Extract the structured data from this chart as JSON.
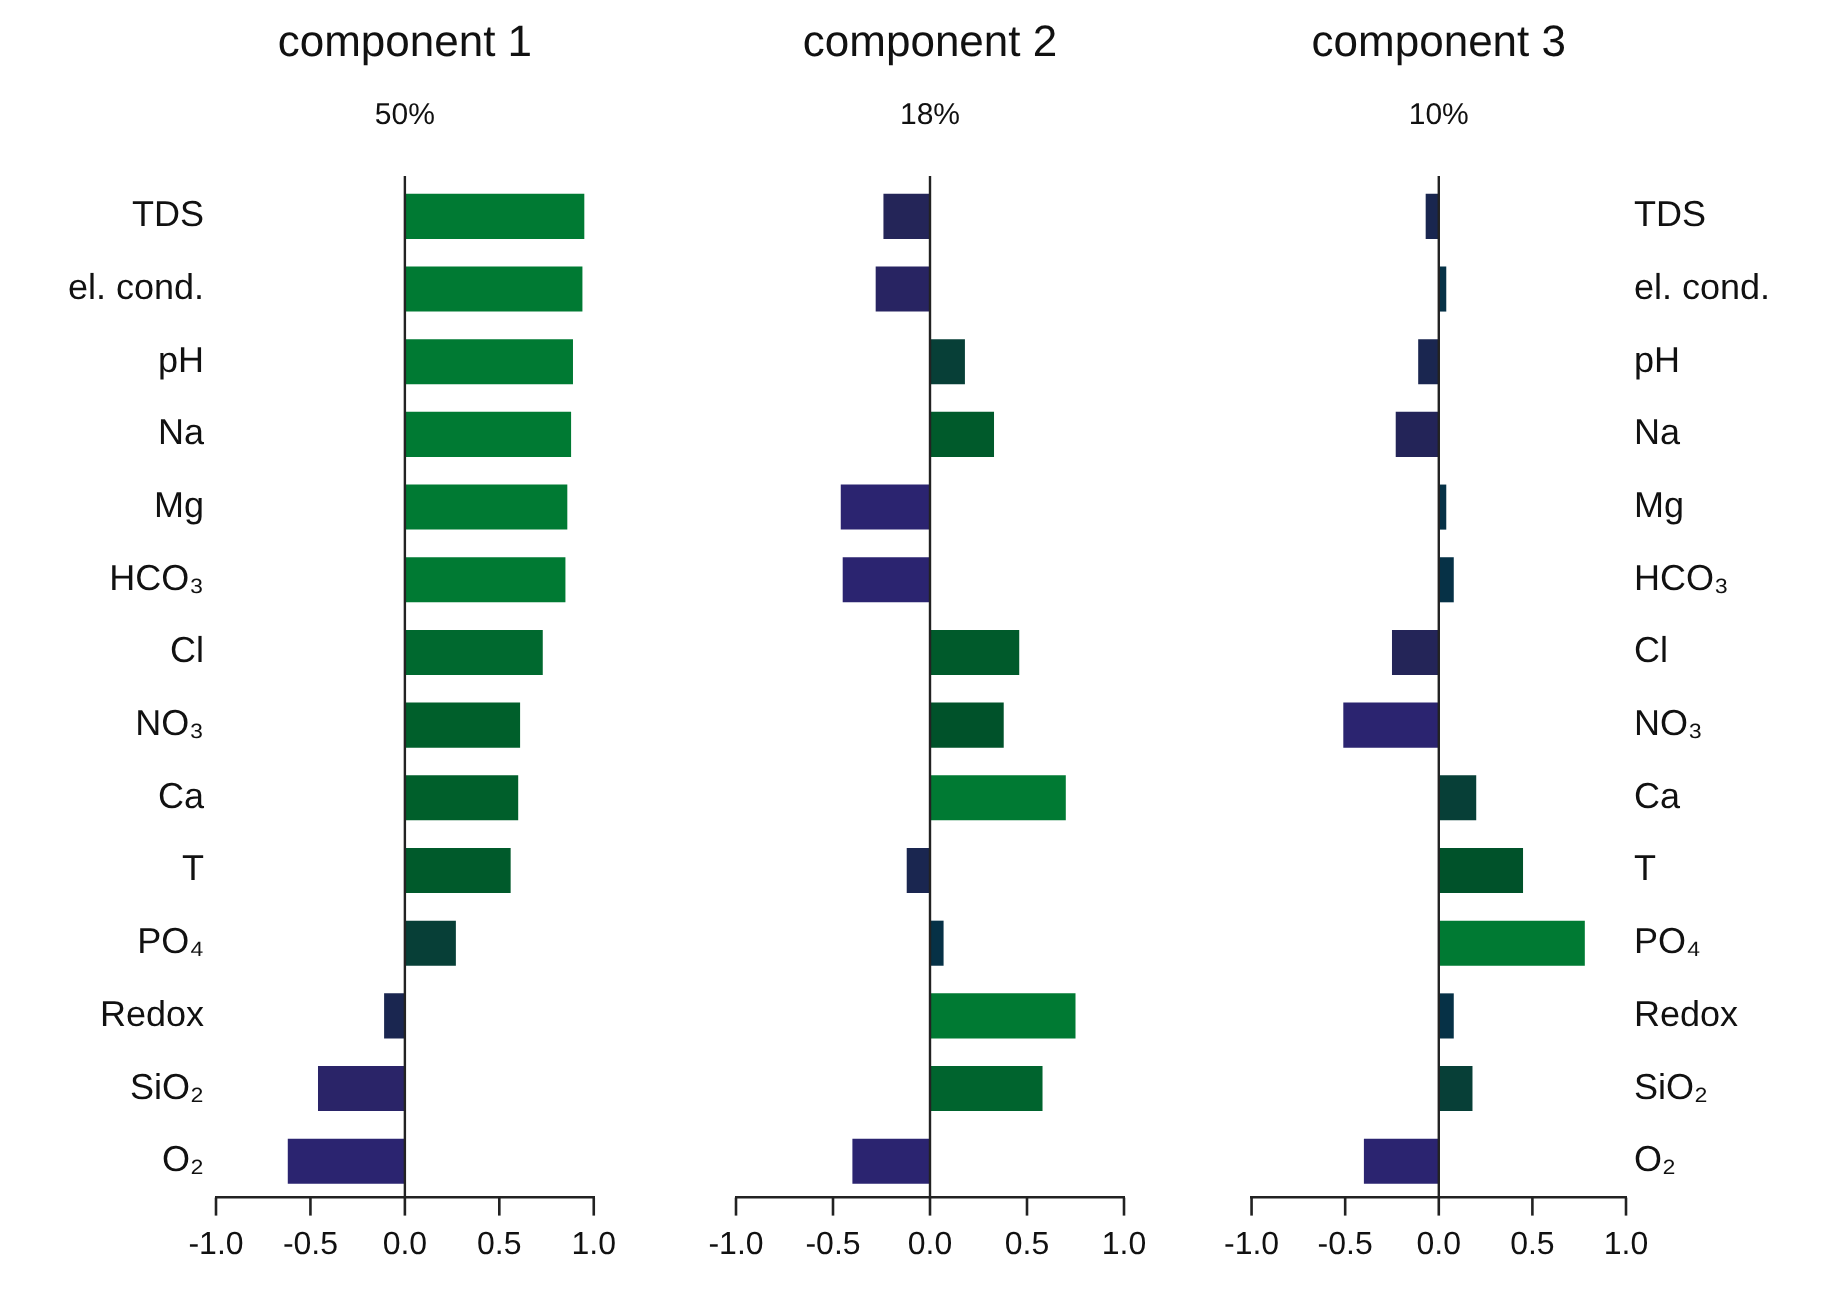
{
  "chart_data": [
    {
      "type": "bar",
      "orientation": "horizontal",
      "title": "component 1",
      "subtitle": "50%",
      "categories": [
        "TDS",
        "el. cond.",
        "pH",
        "Na",
        "Mg",
        "HCO₃",
        "Cl",
        "NO₃",
        "Ca",
        "T",
        "PO₄",
        "Redox",
        "SiO₂",
        "O₂"
      ],
      "values": [
        0.95,
        0.94,
        0.89,
        0.88,
        0.86,
        0.85,
        0.73,
        0.61,
        0.6,
        0.56,
        0.27,
        -0.11,
        -0.46,
        -0.62
      ],
      "ref_lines": [
        {
          "axis": "x",
          "value": 0,
          "color": "#222222"
        }
      ],
      "colors": [
        "#007a33",
        "#007a33",
        "#007a33",
        "#007a33",
        "#007a33",
        "#007a33",
        "#00692f",
        "#005f2b",
        "#005f2b",
        "#005a2b",
        "#073f37",
        "#1a2650",
        "#2a2468",
        "#2b2470"
      ],
      "xlim": [
        -1,
        1
      ],
      "xticks": [
        {
          "value": -1,
          "label": "-1.0"
        },
        {
          "value": -0.5,
          "label": "-0.5"
        },
        {
          "value": 0,
          "label": "0.0"
        },
        {
          "value": 0.5,
          "label": "0.5"
        },
        {
          "value": 1,
          "label": "1.0"
        }
      ],
      "grid": false,
      "legend": false
    },
    {
      "type": "bar",
      "orientation": "horizontal",
      "title": "component 2",
      "subtitle": "18%",
      "categories": [
        null,
        null,
        null,
        null,
        null,
        null,
        null,
        null,
        null,
        null,
        null,
        null,
        null,
        null
      ],
      "values": [
        -0.24,
        -0.28,
        0.18,
        0.33,
        -0.46,
        -0.45,
        0.46,
        0.38,
        0.7,
        -0.12,
        0.07,
        0.75,
        0.58,
        -0.4
      ],
      "ref_lines": [
        {
          "axis": "x",
          "value": 0,
          "color": "#222222"
        }
      ],
      "colors": [
        "#242558",
        "#282462",
        "#073f37",
        "#005a2b",
        "#2b2470",
        "#2b2470",
        "#005a2b",
        "#00522a",
        "#007a33",
        "#1a2650",
        "#063146",
        "#007a33",
        "#00642e",
        "#2b2470"
      ],
      "xlim": [
        -1,
        1
      ],
      "xticks": [
        {
          "value": -1,
          "label": "-1.0"
        },
        {
          "value": -0.5,
          "label": "-0.5"
        },
        {
          "value": 0,
          "label": "0.0"
        },
        {
          "value": 0.5,
          "label": "0.5"
        },
        {
          "value": 1,
          "label": "1.0"
        }
      ],
      "grid": false,
      "legend": false,
      "tick_labels": "x"
    },
    {
      "type": "bar",
      "orientation": "horizontal",
      "title": "component 3",
      "subtitle": "10%",
      "categories": [
        "TDS",
        "el. cond.",
        "pH",
        "Na",
        "Mg",
        "HCO₃",
        "Cl",
        "NO₃",
        "Ca",
        "T",
        "PO₄",
        "Redox",
        "SiO₂",
        "O₂"
      ],
      "values": [
        -0.07,
        0.04,
        -0.11,
        -0.23,
        0.04,
        0.08,
        -0.25,
        -0.51,
        0.2,
        0.45,
        0.78,
        0.08,
        0.18,
        -0.4
      ],
      "ref_lines": [
        {
          "axis": "x",
          "value": 0,
          "color": "#222222"
        }
      ],
      "colors": [
        "#19264f",
        "#063146",
        "#1a2650",
        "#232458",
        "#063146",
        "#063146",
        "#242558",
        "#2b2470",
        "#073f37",
        "#00522a",
        "#007a33",
        "#063146",
        "#073f37",
        "#2b2470"
      ],
      "xlim": [
        -1,
        1
      ],
      "xticks": [
        {
          "value": -1,
          "label": "-1.0"
        },
        {
          "value": -0.5,
          "label": "-0.5"
        },
        {
          "value": 0,
          "label": "0.0"
        },
        {
          "value": 0.5,
          "label": "0.5"
        },
        {
          "value": 1,
          "label": "1.0"
        }
      ],
      "grid": false,
      "legend": false
    }
  ]
}
